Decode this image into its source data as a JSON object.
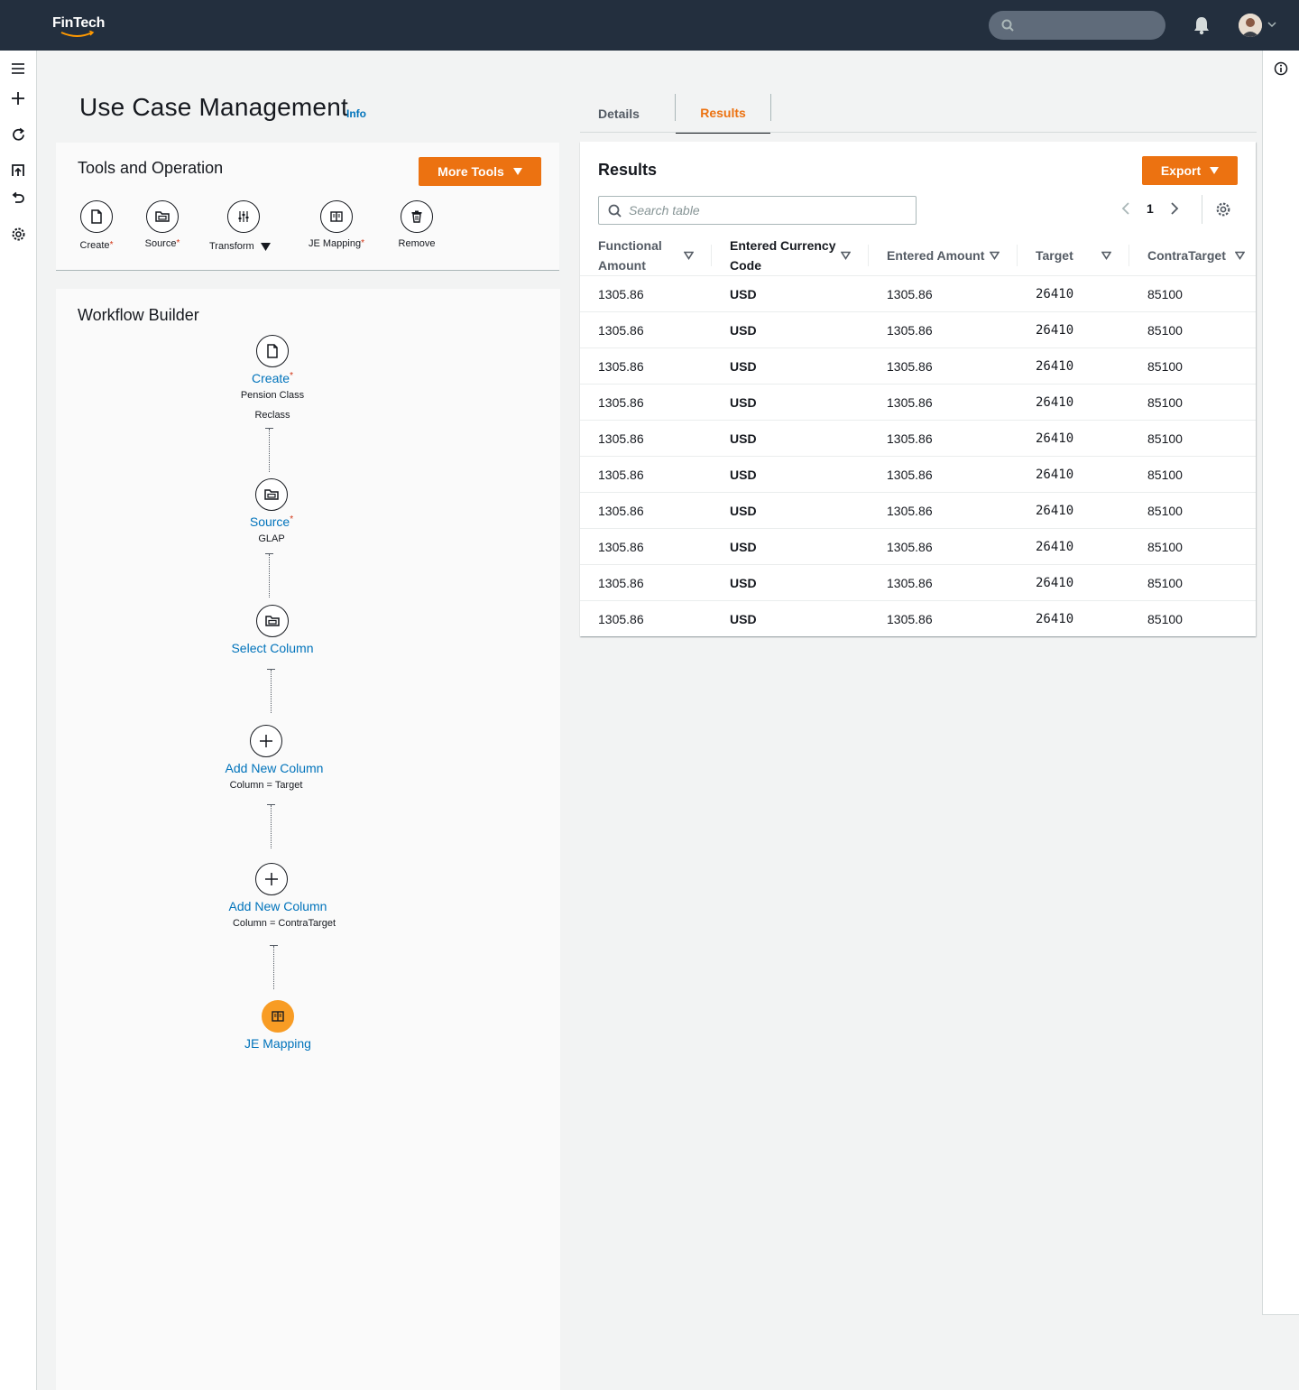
{
  "app": {
    "brand": "FinTech"
  },
  "page": {
    "title": "Use Case Management",
    "info_link": "Info"
  },
  "tools": {
    "title": "Tools and Operation",
    "more_tools_label": "More Tools",
    "items": [
      {
        "label": "Create",
        "required": "*",
        "icon": "document-icon"
      },
      {
        "label": "Source",
        "required": "*",
        "icon": "folder-icon"
      },
      {
        "label": "Transform",
        "required": "",
        "icon": "sliders-icon"
      },
      {
        "label": "JE Mapping",
        "required": "*",
        "icon": "book-icon"
      },
      {
        "label": "Remove",
        "required": "",
        "icon": "trash-icon"
      }
    ]
  },
  "workflow": {
    "title": "Workflow Builder",
    "nodes": [
      {
        "title": "Create",
        "required": "*",
        "sub1": "Pension Class",
        "sub2": "Reclass",
        "icon": "document-icon"
      },
      {
        "title": "Source",
        "required": "*",
        "sub1": "GLAP",
        "icon": "folder-icon"
      },
      {
        "title": "Select Column",
        "icon": "folder-icon"
      },
      {
        "title": "Add New Column",
        "sub1": "Column = Target",
        "icon": "plus-icon"
      },
      {
        "title": "Add New Column",
        "sub1": "Column = ContraTarget",
        "icon": "plus-icon"
      },
      {
        "title": "JE Mapping",
        "icon": "book-icon"
      }
    ]
  },
  "tabs": [
    {
      "label": "Details",
      "active": false
    },
    {
      "label": "Results",
      "active": true
    }
  ],
  "results": {
    "title": "Results",
    "export_label": "Export",
    "search_placeholder": "Search table",
    "current_page": "1",
    "columns": [
      {
        "line1": "Functional",
        "line2": "Amount"
      },
      {
        "line1": "Entered Currency",
        "line2": "Code"
      },
      {
        "line1": "Entered Amount",
        "line2": ""
      },
      {
        "line1": "Target",
        "line2": ""
      },
      {
        "line1": "ContraTarget",
        "line2": ""
      }
    ],
    "rows": [
      [
        "1305.86",
        "USD",
        "1305.86",
        "26410",
        "85100"
      ],
      [
        "1305.86",
        "USD",
        "1305.86",
        "26410",
        "85100"
      ],
      [
        "1305.86",
        "USD",
        "1305.86",
        "26410",
        "85100"
      ],
      [
        "1305.86",
        "USD",
        "1305.86",
        "26410",
        "85100"
      ],
      [
        "1305.86",
        "USD",
        "1305.86",
        "26410",
        "85100"
      ],
      [
        "1305.86",
        "USD",
        "1305.86",
        "26410",
        "85100"
      ],
      [
        "1305.86",
        "USD",
        "1305.86",
        "26410",
        "85100"
      ],
      [
        "1305.86",
        "USD",
        "1305.86",
        "26410",
        "85100"
      ],
      [
        "1305.86",
        "USD",
        "1305.86",
        "26410",
        "85100"
      ],
      [
        "1305.86",
        "USD",
        "1305.86",
        "26410",
        "85100"
      ]
    ]
  },
  "colors": {
    "accent": "#ec7211",
    "link": "#0073bb",
    "header_bg": "#232f3e",
    "node_fill": "#f89c24"
  }
}
